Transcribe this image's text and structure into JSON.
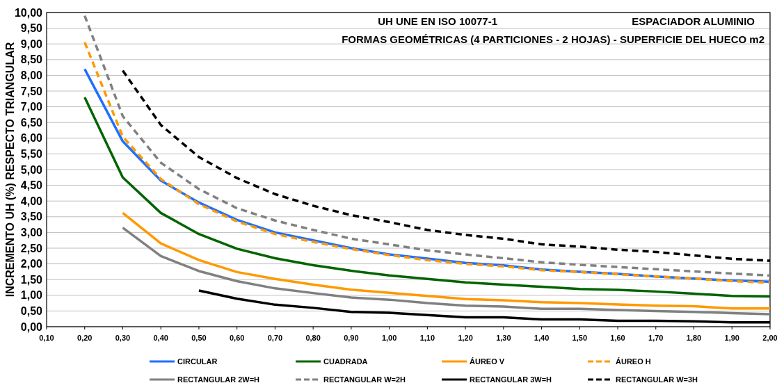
{
  "chart_data": {
    "type": "line",
    "title": "UH      UNE EN ISO 10077-1",
    "subtitle": "FORMAS GEOMÉTRICAS (4 PARTICIONES - 2 HOJAS) - SUPERFICIE DEL HUECO m2",
    "annotations": [
      "ESPACIADOR ALUMINIO"
    ],
    "ylabel": "INCREMENTO UH (%) RESPECTO TRIANGULAR",
    "x": [
      0.2,
      0.3,
      0.4,
      0.5,
      0.6,
      0.7,
      0.8,
      0.9,
      1.0,
      1.1,
      1.2,
      1.3,
      1.4,
      1.5,
      1.6,
      1.7,
      1.8,
      1.9,
      2.0
    ],
    "xlim": [
      0.1,
      2.0
    ],
    "xticks": [
      {
        "value": 0.1,
        "label": "0,10"
      },
      {
        "value": 0.2,
        "label": "0,20"
      },
      {
        "value": 0.3,
        "label": "0,30"
      },
      {
        "value": 0.4,
        "label": "0,40"
      },
      {
        "value": 0.5,
        "label": "0,50"
      },
      {
        "value": 0.6,
        "label": "0,60"
      },
      {
        "value": 0.7,
        "label": "0,70"
      },
      {
        "value": 0.8,
        "label": "0,80"
      },
      {
        "value": 0.9,
        "label": "0,90"
      },
      {
        "value": 1.0,
        "label": "1,00"
      },
      {
        "value": 1.1,
        "label": "1,10"
      },
      {
        "value": 1.2,
        "label": "1,20"
      },
      {
        "value": 1.3,
        "label": "1,30"
      },
      {
        "value": 1.4,
        "label": "1,40"
      },
      {
        "value": 1.5,
        "label": "1,50"
      },
      {
        "value": 1.6,
        "label": "1,60"
      },
      {
        "value": 1.7,
        "label": "1,70"
      },
      {
        "value": 1.8,
        "label": "1,80"
      },
      {
        "value": 1.9,
        "label": "1,90"
      },
      {
        "value": 2.0,
        "label": "2,00"
      }
    ],
    "ylim": [
      0,
      10
    ],
    "yticks": [
      {
        "value": 0,
        "label": "0,00"
      },
      {
        "value": 0.5,
        "label": "0,50"
      },
      {
        "value": 1,
        "label": "1,00"
      },
      {
        "value": 1.5,
        "label": "1,50"
      },
      {
        "value": 2,
        "label": "2,00"
      },
      {
        "value": 2.5,
        "label": "2,50"
      },
      {
        "value": 3,
        "label": "3,00"
      },
      {
        "value": 3.5,
        "label": "3,50"
      },
      {
        "value": 4,
        "label": "4,00"
      },
      {
        "value": 4.5,
        "label": "4,50"
      },
      {
        "value": 5,
        "label": "5,00"
      },
      {
        "value": 5.5,
        "label": "5,50"
      },
      {
        "value": 6,
        "label": "6,00"
      },
      {
        "value": 6.5,
        "label": "6,50"
      },
      {
        "value": 7,
        "label": "7,00"
      },
      {
        "value": 7.5,
        "label": "7,50"
      },
      {
        "value": 8,
        "label": "8,00"
      },
      {
        "value": 8.5,
        "label": "8,50"
      },
      {
        "value": 9,
        "label": "9,00"
      },
      {
        "value": 9.5,
        "label": "9,50"
      },
      {
        "value": 10,
        "label": "10,00"
      }
    ],
    "grid": "y",
    "legend": "bottom",
    "marker": "none",
    "series": [
      {
        "name": "CIRCULAR",
        "color": "#1f6fff",
        "line_style": "solid",
        "values": [
          8.2,
          5.9,
          4.65,
          3.95,
          3.4,
          3.0,
          2.75,
          2.5,
          2.3,
          2.17,
          2.03,
          1.95,
          1.82,
          1.75,
          1.68,
          1.6,
          1.53,
          1.47,
          1.43
        ]
      },
      {
        "name": "CUADRADA",
        "color": "#006400",
        "line_style": "solid",
        "values": [
          7.3,
          4.75,
          3.62,
          2.95,
          2.48,
          2.18,
          1.96,
          1.78,
          1.63,
          1.52,
          1.41,
          1.34,
          1.27,
          1.2,
          1.17,
          1.12,
          1.05,
          0.98,
          0.96
        ]
      },
      {
        "name": "ÁUREO V",
        "color": "#ff9900",
        "line_style": "solid",
        "values": [
          null,
          3.62,
          2.65,
          2.12,
          1.74,
          1.52,
          1.34,
          1.18,
          1.08,
          0.98,
          0.88,
          0.84,
          0.78,
          0.75,
          0.71,
          0.67,
          0.65,
          0.58,
          0.58
        ]
      },
      {
        "name": "ÁUREO H",
        "color": "#ff9900",
        "line_style": "dashed",
        "values": [
          9.05,
          6.05,
          4.7,
          3.9,
          3.35,
          2.95,
          2.7,
          2.47,
          2.28,
          2.12,
          2.0,
          1.92,
          1.8,
          1.74,
          1.67,
          1.6,
          1.53,
          1.45,
          1.4
        ]
      },
      {
        "name": "RECTANGULAR 2W=H",
        "color": "#808080",
        "line_style": "solid",
        "values": [
          null,
          3.15,
          2.25,
          1.77,
          1.45,
          1.22,
          1.07,
          0.93,
          0.86,
          0.75,
          0.67,
          0.64,
          0.57,
          0.57,
          0.53,
          0.5,
          0.47,
          0.43,
          0.4
        ]
      },
      {
        "name": "RECTANGULAR W=2H",
        "color": "#808080",
        "line_style": "dashed",
        "values": [
          9.9,
          6.7,
          5.22,
          4.38,
          3.77,
          3.38,
          3.08,
          2.8,
          2.62,
          2.43,
          2.3,
          2.18,
          2.05,
          1.97,
          1.9,
          1.83,
          1.76,
          1.69,
          1.63
        ]
      },
      {
        "name": "RECTANGULAR 3W=H",
        "color": "#000000",
        "line_style": "solid",
        "values": [
          null,
          null,
          null,
          1.15,
          0.89,
          0.7,
          0.6,
          0.47,
          0.44,
          0.37,
          0.3,
          0.3,
          0.23,
          0.23,
          0.19,
          0.19,
          0.17,
          0.14,
          0.14
        ]
      },
      {
        "name": "RECTANGULAR W=3H",
        "color": "#000000",
        "line_style": "dashed",
        "values": [
          null,
          8.15,
          6.42,
          5.4,
          4.73,
          4.22,
          3.85,
          3.55,
          3.33,
          3.08,
          2.92,
          2.8,
          2.62,
          2.55,
          2.45,
          2.38,
          2.27,
          2.16,
          2.1
        ]
      }
    ]
  }
}
